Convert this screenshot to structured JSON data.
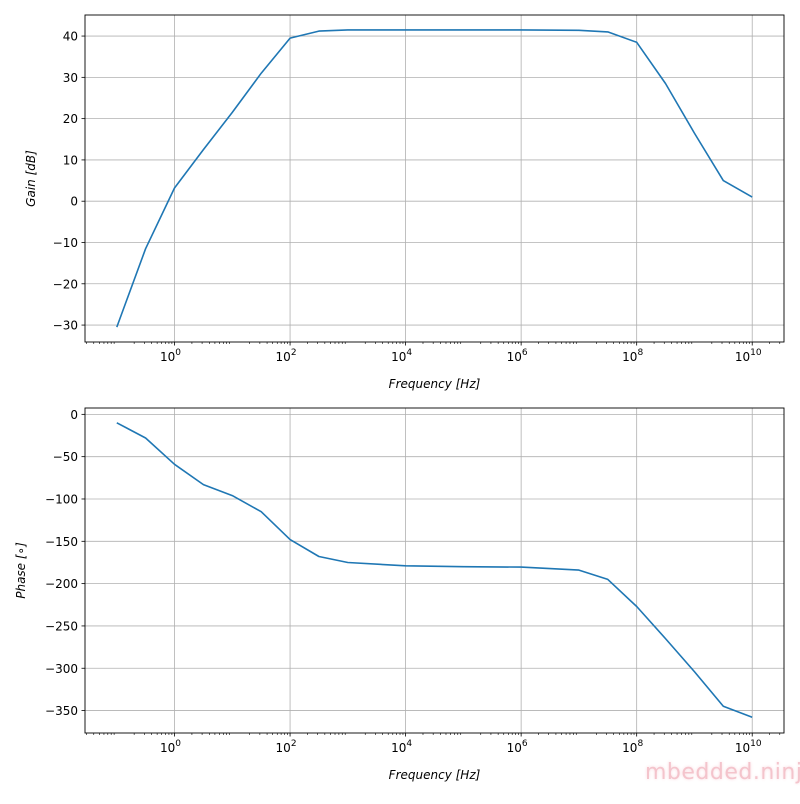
{
  "watermark": "mbedded.ninja",
  "colors": {
    "line": "#1f77b4",
    "grid": "#b0b0b0",
    "axes": "#000000"
  },
  "chart_data": [
    {
      "type": "line",
      "xscale": "log",
      "xlim": [
        0.0282,
        35500000000.0
      ],
      "ylim": [
        -34.1,
        45.1
      ],
      "grid": true,
      "xlabel": "Frequency [Hz]",
      "ylabel": "Gain [dB]",
      "xticks": [
        {
          "exp": 0,
          "label": "10",
          "sup": "0"
        },
        {
          "exp": 2,
          "label": "10",
          "sup": "2"
        },
        {
          "exp": 4,
          "label": "10",
          "sup": "4"
        },
        {
          "exp": 6,
          "label": "10",
          "sup": "6"
        },
        {
          "exp": 8,
          "label": "10",
          "sup": "8"
        },
        {
          "exp": 10,
          "label": "10",
          "sup": "10"
        }
      ],
      "yticks": [
        40,
        30,
        20,
        10,
        0,
        -10,
        -20,
        -30
      ],
      "ytick_labels": [
        "40",
        "30",
        "20",
        "10",
        "0",
        "−10",
        "−20",
        "−30"
      ],
      "series": [
        {
          "x": [
            0.1,
            0.316,
            1,
            3.16,
            10,
            31.6,
            100,
            316,
            1000,
            10000.0,
            100000.0,
            1000000.0,
            10000000.0,
            31600000.0,
            100000000.0,
            316000000.0,
            1000000000.0,
            3160000000.0,
            10000000000.0
          ],
          "y": [
            -30.5,
            -11.5,
            3.2,
            12.5,
            21.5,
            31,
            39.5,
            41.2,
            41.5,
            41.5,
            41.5,
            41.5,
            41.4,
            41,
            38.5,
            28.5,
            16.5,
            5,
            1
          ]
        }
      ]
    },
    {
      "type": "line",
      "xscale": "log",
      "xlim": [
        0.0282,
        35500000000.0
      ],
      "ylim": [
        -376.5,
        7.5
      ],
      "grid": true,
      "xlabel": "Frequency [Hz]",
      "ylabel": "Phase [∘]",
      "xticks": [
        {
          "exp": 0,
          "label": "10",
          "sup": "0"
        },
        {
          "exp": 2,
          "label": "10",
          "sup": "2"
        },
        {
          "exp": 4,
          "label": "10",
          "sup": "4"
        },
        {
          "exp": 6,
          "label": "10",
          "sup": "6"
        },
        {
          "exp": 8,
          "label": "10",
          "sup": "8"
        },
        {
          "exp": 10,
          "label": "10",
          "sup": "10"
        }
      ],
      "yticks": [
        0,
        -50,
        -100,
        -150,
        -200,
        -250,
        -300,
        -350
      ],
      "ytick_labels": [
        "0",
        "−50",
        "−100",
        "−150",
        "−200",
        "−250",
        "−300",
        "−350"
      ],
      "series": [
        {
          "x": [
            0.1,
            0.316,
            1,
            3.16,
            10,
            31.6,
            100,
            316,
            1000,
            10000.0,
            100000.0,
            1000000.0,
            10000000.0,
            31600000.0,
            100000000.0,
            316000000.0,
            1000000000.0,
            3160000000.0,
            10000000000.0
          ],
          "y": [
            -10,
            -28,
            -59,
            -83,
            -96,
            -115,
            -148,
            -168,
            -175,
            -179,
            -180,
            -180.5,
            -184,
            -195,
            -227,
            -265,
            -304,
            -345,
            -358
          ]
        }
      ]
    }
  ]
}
